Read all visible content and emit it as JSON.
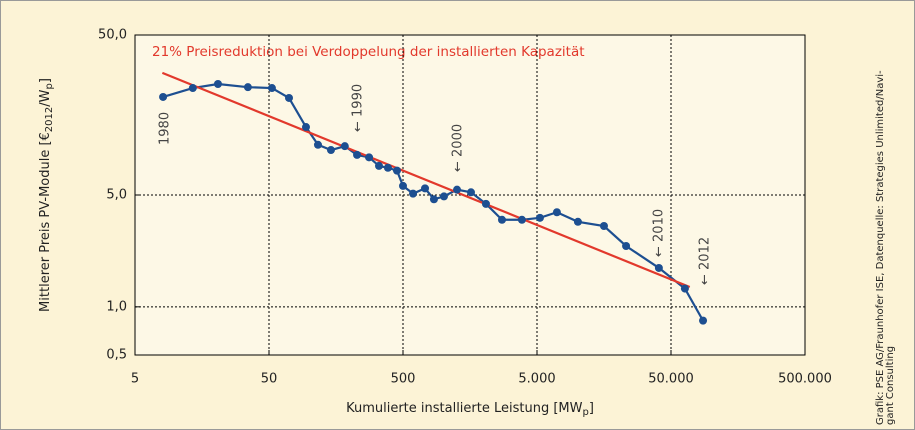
{
  "chart_data": {
    "type": "line",
    "annotation": "21% Preisreduktion bei Verdoppelung der installierten Kapazität",
    "year_labels": [
      "1980",
      "← 1990",
      "← 2000",
      "← 2010",
      "← 2012"
    ],
    "xlabel": [
      "Kumulierte installierte Leistung [MW",
      "p",
      "]"
    ],
    "ylabel": [
      "Mittlerer Preis PV-Module [€",
      "2012",
      "/W",
      "p",
      "]"
    ],
    "source": [
      "Grafik: PSE AG/Fraunhofer ISE, Datenquelle: Strategies Unlimited/Navi-",
      "gant Consulting"
    ],
    "xscale": "log",
    "yscale": "log",
    "xlim": [
      5,
      500000
    ],
    "ylim": [
      0.5,
      50
    ],
    "xticks": [
      5,
      50,
      500,
      {
        "value": 5000,
        "label": "5.000"
      },
      {
        "value": 50000,
        "label": "50.000"
      },
      {
        "value": 500000,
        "label": "500.000"
      }
    ],
    "yticks": [
      {
        "value": 0.5,
        "label": "0,5"
      },
      {
        "value": 1,
        "label": "1,0"
      },
      {
        "value": 5,
        "label": "5,0"
      },
      {
        "value": 50,
        "label": "50,0"
      }
    ],
    "grid": true,
    "series": [
      {
        "color": "#1d4f91",
        "x": [
          8.1,
          13.5,
          20.8,
          34.8,
          52.6,
          70.5,
          94.4,
          116,
          145,
          184,
          227,
          279,
          331,
          386,
          451,
          500,
          594,
          730,
          851,
          1011,
          1265,
          1608,
          2080,
          2740,
          3860,
          5260,
          7040,
          10100,
          15800,
          23100,
          40600,
          63500,
          86700
        ],
        "values": [
          20.5,
          23.3,
          24.7,
          23.6,
          23.3,
          20.2,
          13.3,
          10.3,
          9.55,
          10.1,
          8.9,
          8.6,
          7.6,
          7.4,
          7.1,
          5.7,
          5.1,
          5.5,
          4.7,
          4.9,
          5.4,
          5.2,
          4.4,
          3.5,
          3.5,
          3.6,
          3.9,
          3.4,
          3.2,
          2.4,
          1.75,
          1.3,
          0.82
        ]
      }
    ],
    "trend": {
      "color": "#e2392c",
      "x": [
        8,
        69000
      ],
      "values": [
        29,
        1.33
      ]
    }
  }
}
